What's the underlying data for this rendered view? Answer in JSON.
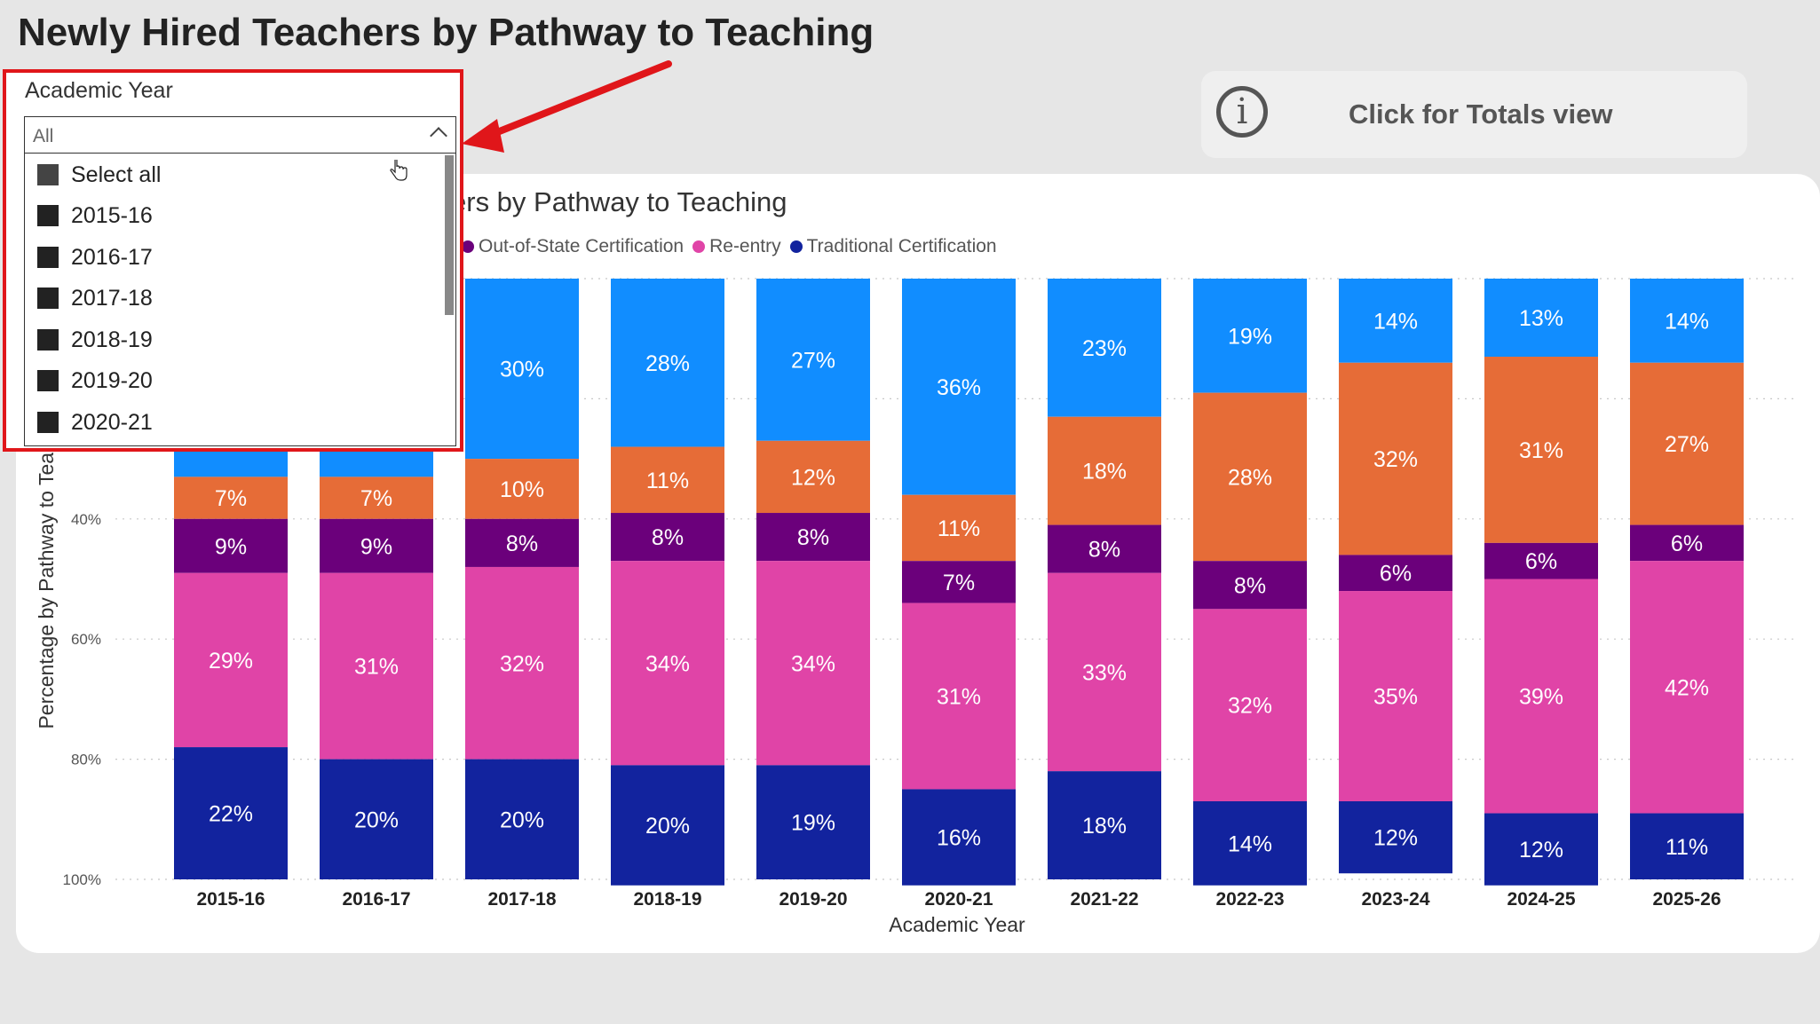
{
  "page_title": "Newly Hired Teachers by Pathway to Teaching",
  "info_button": {
    "icon": "info-icon",
    "glyph": "i",
    "label": "Click for Totals view"
  },
  "slicer": {
    "header": "Academic Year",
    "selected_value": "All",
    "items": [
      {
        "label": "Select all"
      },
      {
        "label": "2015-16"
      },
      {
        "label": "2016-17"
      },
      {
        "label": "2017-18"
      },
      {
        "label": "2018-19"
      },
      {
        "label": "2019-20"
      },
      {
        "label": "2020-21"
      }
    ]
  },
  "chart_title_visible": "ers by Pathway to Teaching",
  "legend": [
    {
      "label": "Out-of-State Certification",
      "color": "#6b007b"
    },
    {
      "label": "Re-entry",
      "color": "#e044a7"
    },
    {
      "label": "Traditional Certification",
      "color": "#12239e"
    }
  ],
  "colors": {
    "accent_red": "#e0161a",
    "other_blue": "#118dff",
    "orange": "#e66c37",
    "purple": "#6b007b",
    "pink": "#e044a7",
    "navy": "#12239e"
  },
  "chart_data": {
    "type": "bar",
    "stacked": true,
    "xlabel": "Academic Year",
    "ylabel": "Percentage by Pathway to Teac",
    "ylim": [
      0,
      100
    ],
    "y_ticks": [
      "40%",
      "60%",
      "80%",
      "100%"
    ],
    "y_tick_values": [
      40,
      60,
      80,
      100
    ],
    "y_axis_reversed": true,
    "grid": true,
    "categories": [
      "2015-16",
      "2016-17",
      "2017-18",
      "2018-19",
      "2019-20",
      "2020-21",
      "2021-22",
      "2022-23",
      "2023-24",
      "2024-25",
      "2025-26"
    ],
    "series": [
      {
        "color": "#118dff",
        "values": [
          33,
          33,
          30,
          28,
          27,
          36,
          23,
          19,
          14,
          13,
          14
        ]
      },
      {
        "color": "#e66c37",
        "values": [
          7,
          7,
          10,
          11,
          12,
          11,
          18,
          28,
          32,
          31,
          27
        ]
      },
      {
        "name": "Out-of-State Certification",
        "color": "#6b007b",
        "values": [
          9,
          9,
          8,
          8,
          8,
          7,
          8,
          8,
          6,
          6,
          6
        ]
      },
      {
        "name": "Re-entry",
        "color": "#e044a7",
        "values": [
          29,
          31,
          32,
          34,
          34,
          31,
          33,
          32,
          35,
          39,
          42
        ]
      },
      {
        "name": "Traditional Certification",
        "color": "#12239e",
        "values": [
          22,
          20,
          20,
          20,
          19,
          16,
          18,
          14,
          12,
          12,
          11
        ]
      }
    ],
    "data_labels": [
      [
        "",
        "",
        "30%",
        "28%",
        "27%",
        "36%",
        "23%",
        "19%",
        "14%",
        "13%",
        "14%"
      ],
      [
        "7%",
        "7%",
        "10%",
        "11%",
        "12%",
        "11%",
        "18%",
        "28%",
        "32%",
        "31%",
        "27%"
      ],
      [
        "9%",
        "9%",
        "8%",
        "8%",
        "8%",
        "7%",
        "8%",
        "8%",
        "6%",
        "6%",
        "6%"
      ],
      [
        "29%",
        "31%",
        "32%",
        "34%",
        "34%",
        "31%",
        "33%",
        "32%",
        "35%",
        "39%",
        "42%"
      ],
      [
        "22%",
        "20%",
        "20%",
        "20%",
        "19%",
        "16%",
        "18%",
        "14%",
        "12%",
        "12%",
        "11%"
      ]
    ]
  }
}
